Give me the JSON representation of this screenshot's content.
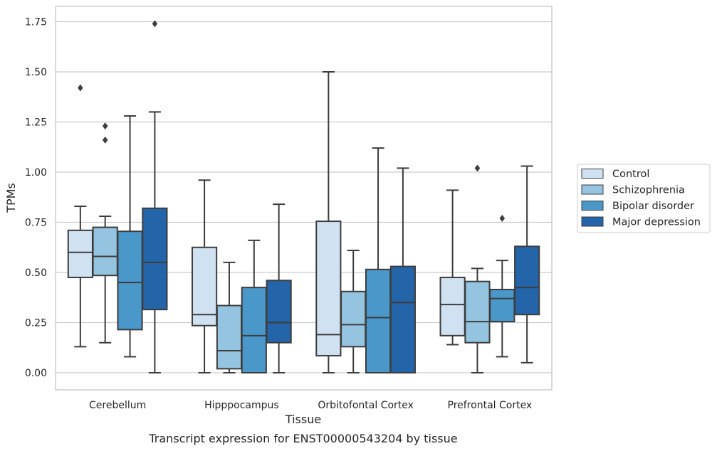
{
  "chart_data": {
    "type": "boxplot",
    "caption": "Transcript expression for ENST00000543204 by tissue",
    "xlabel": "Tissue",
    "ylabel": "TPMs",
    "ylim": [
      -0.08,
      1.83
    ],
    "yticks": [
      "0.00",
      "0.25",
      "0.50",
      "0.75",
      "1.00",
      "1.25",
      "1.50",
      "1.75"
    ],
    "ytick_values": [
      0,
      0.25,
      0.5,
      0.75,
      1.0,
      1.25,
      1.5,
      1.75
    ],
    "grid": true,
    "legend_position": "right",
    "categories": [
      "Cerebellum",
      "Hipppocampus",
      "Orbitofontal Cortex",
      "Prefrontal Cortex"
    ],
    "series": [
      {
        "name": "Control",
        "color": "#d0e1f2",
        "boxes": [
          {
            "whislo": 0.13,
            "q1": 0.475,
            "med": 0.6,
            "q3": 0.71,
            "whishi": 0.83,
            "fliers": [
              1.42
            ]
          },
          {
            "whislo": 0.0,
            "q1": 0.235,
            "med": 0.29,
            "q3": 0.625,
            "whishi": 0.96,
            "fliers": []
          },
          {
            "whislo": 0.0,
            "q1": 0.085,
            "med": 0.19,
            "q3": 0.755,
            "whishi": 1.5,
            "fliers": []
          },
          {
            "whislo": 0.14,
            "q1": 0.185,
            "med": 0.34,
            "q3": 0.475,
            "whishi": 0.91,
            "fliers": []
          }
        ]
      },
      {
        "name": "Schizophrenia",
        "color": "#94c4df",
        "boxes": [
          {
            "whislo": 0.15,
            "q1": 0.485,
            "med": 0.58,
            "q3": 0.725,
            "whishi": 0.78,
            "fliers": [
              1.23,
              1.16
            ]
          },
          {
            "whislo": 0.0,
            "q1": 0.02,
            "med": 0.11,
            "q3": 0.335,
            "whishi": 0.55,
            "fliers": []
          },
          {
            "whislo": 0.0,
            "q1": 0.13,
            "med": 0.24,
            "q3": 0.405,
            "whishi": 0.61,
            "fliers": []
          },
          {
            "whislo": 0.0,
            "q1": 0.15,
            "med": 0.255,
            "q3": 0.455,
            "whishi": 0.52,
            "fliers": [
              1.02
            ]
          }
        ]
      },
      {
        "name": "Bipolar disorder",
        "color": "#4a98c9",
        "boxes": [
          {
            "whislo": 0.08,
            "q1": 0.215,
            "med": 0.45,
            "q3": 0.705,
            "whishi": 1.28,
            "fliers": []
          },
          {
            "whislo": 0.0,
            "q1": 0.0,
            "med": 0.185,
            "q3": 0.425,
            "whishi": 0.66,
            "fliers": []
          },
          {
            "whislo": 0.0,
            "q1": 0.0,
            "med": 0.275,
            "q3": 0.515,
            "whishi": 1.12,
            "fliers": []
          },
          {
            "whislo": 0.08,
            "q1": 0.255,
            "med": 0.37,
            "q3": 0.415,
            "whishi": 0.56,
            "fliers": [
              0.77
            ]
          }
        ]
      },
      {
        "name": "Major depression",
        "color": "#2464a8",
        "boxes": [
          {
            "whislo": 0.0,
            "q1": 0.315,
            "med": 0.55,
            "q3": 0.82,
            "whishi": 1.3,
            "fliers": [
              1.74
            ]
          },
          {
            "whislo": 0.0,
            "q1": 0.15,
            "med": 0.25,
            "q3": 0.46,
            "whishi": 0.84,
            "fliers": []
          },
          {
            "whislo": 0.0,
            "q1": 0.0,
            "med": 0.35,
            "q3": 0.53,
            "whishi": 1.02,
            "fliers": []
          },
          {
            "whislo": 0.05,
            "q1": 0.29,
            "med": 0.425,
            "q3": 0.63,
            "whishi": 1.03,
            "fliers": []
          }
        ]
      }
    ]
  }
}
